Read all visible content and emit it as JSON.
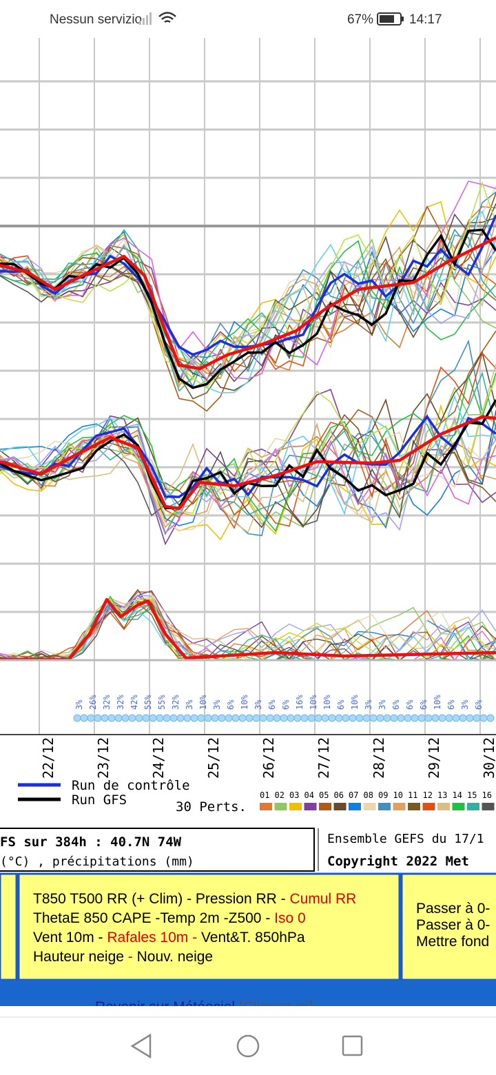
{
  "status_bar": {
    "carrier": "Nessun servizio",
    "battery": "67%",
    "time": "14:17"
  },
  "chart": {
    "dates": [
      "22/12",
      "23/12",
      "24/12",
      "25/12",
      "26/12",
      "27/12",
      "28/12",
      "29/12",
      "30/12"
    ],
    "snow_probabilities": [
      "3%",
      "26%",
      "32%",
      "32%",
      "42%",
      "55%",
      "55%",
      "32%",
      "3%",
      "10%",
      "3%",
      "6%",
      "10%",
      "3%",
      "6%",
      "6%",
      "16%",
      "10%",
      "10%",
      "6%",
      "10%",
      "3%",
      "3%",
      "6%",
      "6%",
      "6%",
      "10%",
      "6%",
      "3%",
      "6%"
    ],
    "legend": {
      "control": "Run de contrôle",
      "gfs": "Run GFS",
      "perts": "30 Perts.",
      "members": [
        {
          "label": "01",
          "color": "#e07a30"
        },
        {
          "label": "02",
          "color": "#8fc860"
        },
        {
          "label": "03",
          "color": "#f0c000"
        },
        {
          "label": "04",
          "color": "#8040a0"
        },
        {
          "label": "05",
          "color": "#b05a18"
        },
        {
          "label": "06",
          "color": "#6a4a28"
        },
        {
          "label": "07",
          "color": "#1080e0"
        },
        {
          "label": "08",
          "color": "#e8d8b0"
        },
        {
          "label": "09",
          "color": "#4090c0"
        },
        {
          "label": "10",
          "color": "#e0a060"
        },
        {
          "label": "11",
          "color": "#7a5a20"
        },
        {
          "label": "12",
          "color": "#e05010"
        },
        {
          "label": "13",
          "color": "#d8c080"
        },
        {
          "label": "14",
          "color": "#20c040"
        },
        {
          "label": "15",
          "color": "#30b0a0"
        },
        {
          "label": "16",
          "color": "#555555"
        }
      ]
    }
  },
  "info": {
    "title": "FS sur 384h : 40.7N 74W",
    "subtitle": "(°C) , précipitations (mm)",
    "ensemble": "Ensemble GEFS du 17/1",
    "copyright": "Copyright 2022 Met"
  },
  "menu": {
    "lines": [
      [
        {
          "text": "T850 T500 RR (+ Clim) - Pression RR - ",
          "color": "#000000"
        },
        {
          "text": "Cumul RR",
          "color": "#e00000"
        }
      ],
      [
        {
          "text": "ThetaE 850 CAPE -Temp 2m -Z500 - ",
          "color": "#000000"
        },
        {
          "text": "Iso 0",
          "color": "#e00000"
        }
      ],
      [
        {
          "text": "Vent 10m - ",
          "color": "#000000"
        },
        {
          "text": "Rafales 10m - ",
          "color": "#e00000"
        },
        {
          "text": "Vent&T. 850hPa",
          "color": "#000000"
        }
      ],
      [
        {
          "text": "Hauteur neige ",
          "color": "#000000"
        },
        {
          "text": "- ",
          "color": "#e00000"
        },
        {
          "text": "Nouv. neige",
          "color": "#000000"
        }
      ]
    ],
    "right": [
      "Passer à 0-",
      "Passer à 0-",
      "Mettre fond"
    ]
  },
  "footer": {
    "link": "Revenir sur Météociel",
    "hint": "[Cliquez ici]"
  }
}
